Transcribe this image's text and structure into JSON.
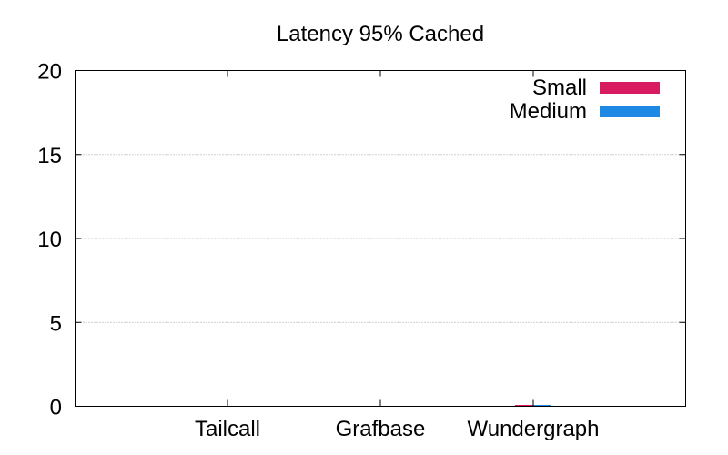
{
  "chart_data": {
    "type": "bar",
    "title": "Latency 95% Cached",
    "xlabel": "",
    "ylabel": "",
    "categories": [
      "Tailcall",
      "Grafbase",
      "Wundergraph"
    ],
    "series": [
      {
        "name": "Small",
        "color": "#d81b60",
        "values": [
          0,
          0,
          0.02
        ]
      },
      {
        "name": "Medium",
        "color": "#1e88e5",
        "values": [
          0,
          0,
          0.03
        ]
      }
    ],
    "ylim": [
      0,
      20
    ],
    "yticks": [
      "0",
      "5",
      "10",
      "15",
      "20"
    ],
    "grid": true,
    "legend_position": "top-right"
  }
}
